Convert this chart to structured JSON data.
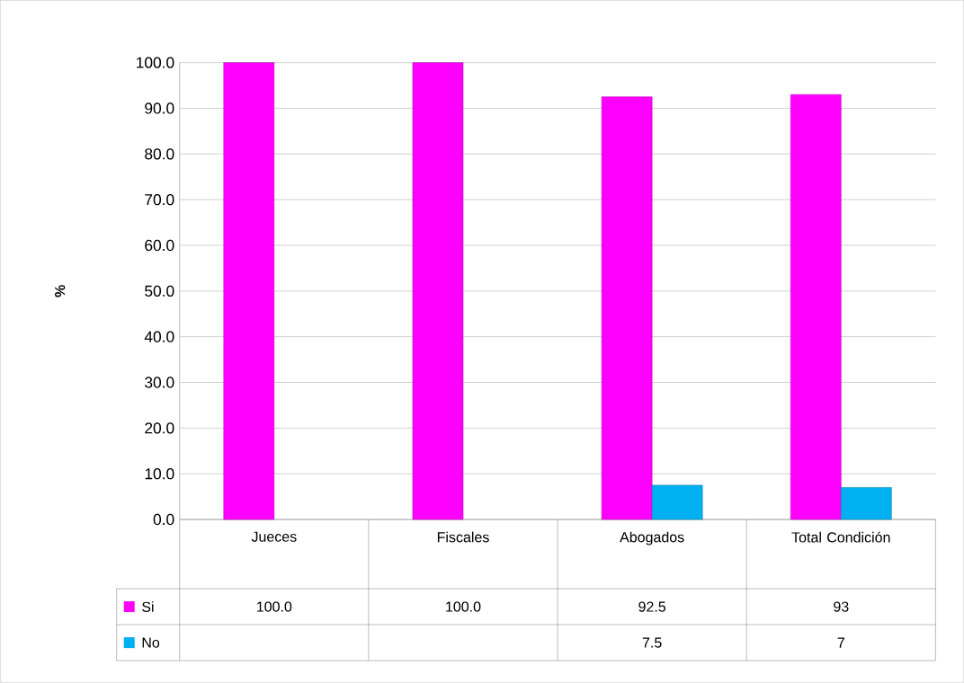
{
  "chart_data": {
    "type": "bar",
    "ylabel": "%",
    "categories": [
      "Jueces",
      "Fiscales",
      "Abogados",
      "Total Condición"
    ],
    "series": [
      {
        "name": "Si",
        "color": "#ff00ff",
        "values": [
          100.0,
          100.0,
          92.5,
          93
        ],
        "value_labels": [
          "100.0",
          "100.0",
          "92.5",
          "93"
        ]
      },
      {
        "name": "No",
        "color": "#00b0f0",
        "values": [
          null,
          null,
          7.5,
          7
        ],
        "value_labels": [
          null,
          null,
          "7.5",
          "7"
        ]
      }
    ],
    "ylim": [
      0,
      100
    ],
    "yticks": [
      {
        "value": 0,
        "label": "0.0"
      },
      {
        "value": 10,
        "label": "10.0"
      },
      {
        "value": 20,
        "label": "20.0"
      },
      {
        "value": 30,
        "label": "30.0"
      },
      {
        "value": 40,
        "label": "40.0"
      },
      {
        "value": 50,
        "label": "50.0"
      },
      {
        "value": 60,
        "label": "60.0"
      },
      {
        "value": 70,
        "label": "70.0"
      },
      {
        "value": 80,
        "label": "80.0"
      },
      {
        "value": 90,
        "label": "90.0"
      },
      {
        "value": 100,
        "label": "100.0"
      }
    ],
    "grid": "y",
    "legend": "bottom"
  }
}
